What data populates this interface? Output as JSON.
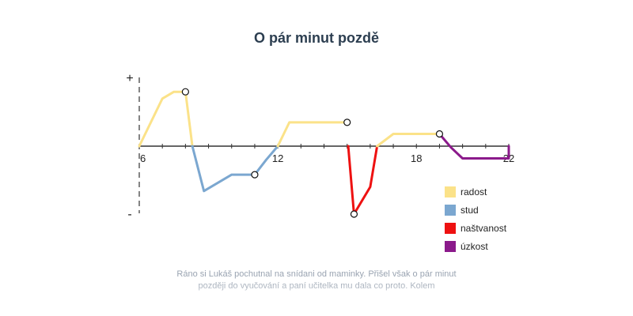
{
  "title": "O pár minut pozdě",
  "story": "Ráno si Lukáš pochutnal na snídani od maminky. Přišel však o pár minut později do vyučování a paní učitelka mu dala co proto. Kolem",
  "colors": {
    "radost": "#fbe289",
    "stud": "#7ba7d0",
    "nastvanost": "#ee1111",
    "uzkost": "#8b1a8b",
    "axis": "#333333"
  },
  "chart_data": {
    "type": "line",
    "xlim": [
      6,
      22
    ],
    "ylim": [
      -1,
      1
    ],
    "x_tick_labels": [
      "6",
      "12",
      "18",
      "22"
    ],
    "x_tick_step": 1,
    "y_labels": {
      "positive": "+",
      "negative": "-"
    },
    "legend_placement": "bottom-right",
    "series": [
      {
        "key": "radost",
        "name": "radost",
        "color": "#fbe289",
        "points": [
          [
            6,
            0
          ],
          [
            7,
            0.7
          ],
          [
            7.5,
            0.8
          ],
          [
            8,
            0.8
          ],
          [
            8.3,
            0
          ]
        ],
        "markers": [
          [
            8,
            0.8
          ]
        ]
      },
      {
        "key": "stud",
        "name": "stud",
        "color": "#7ba7d0",
        "points": [
          [
            8.3,
            0
          ],
          [
            8.8,
            -0.66
          ],
          [
            10,
            -0.42
          ],
          [
            11,
            -0.42
          ],
          [
            11.5,
            -0.2
          ],
          [
            12,
            0
          ]
        ],
        "markers": [
          [
            11,
            -0.42
          ]
        ]
      },
      {
        "key": "radost",
        "name": "radost",
        "color": "#fbe289",
        "points": [
          [
            12,
            0
          ],
          [
            12.5,
            0.35
          ],
          [
            14,
            0.35
          ],
          [
            15,
            0.35
          ]
        ],
        "markers": [
          [
            15,
            0.35
          ]
        ]
      },
      {
        "key": "nastvanost",
        "name": "naštvanost",
        "color": "#ee1111",
        "points": [
          [
            15.05,
            0
          ],
          [
            15.3,
            -1
          ],
          [
            16,
            -0.6
          ],
          [
            16.3,
            0
          ]
        ],
        "markers": [
          [
            15.3,
            -1
          ]
        ]
      },
      {
        "key": "radost",
        "name": "radost",
        "color": "#fbe289",
        "points": [
          [
            16.3,
            0
          ],
          [
            17,
            0.18
          ],
          [
            19,
            0.18
          ]
        ],
        "markers": [
          [
            19,
            0.18
          ]
        ]
      },
      {
        "key": "uzkost",
        "name": "úzkost",
        "color": "#8b1a8b",
        "points": [
          [
            19,
            0.18
          ],
          [
            19.5,
            -0.02
          ],
          [
            20,
            -0.18
          ],
          [
            22,
            -0.18
          ],
          [
            22,
            0
          ]
        ],
        "markers": []
      }
    ],
    "legend": [
      {
        "key": "radost",
        "label": "radost",
        "color": "#fbe289"
      },
      {
        "key": "stud",
        "label": "stud",
        "color": "#7ba7d0"
      },
      {
        "key": "nastvanost",
        "label": "naštvanost",
        "color": "#ee1111"
      },
      {
        "key": "uzkost",
        "label": "úzkost",
        "color": "#8b1a8b"
      }
    ]
  }
}
